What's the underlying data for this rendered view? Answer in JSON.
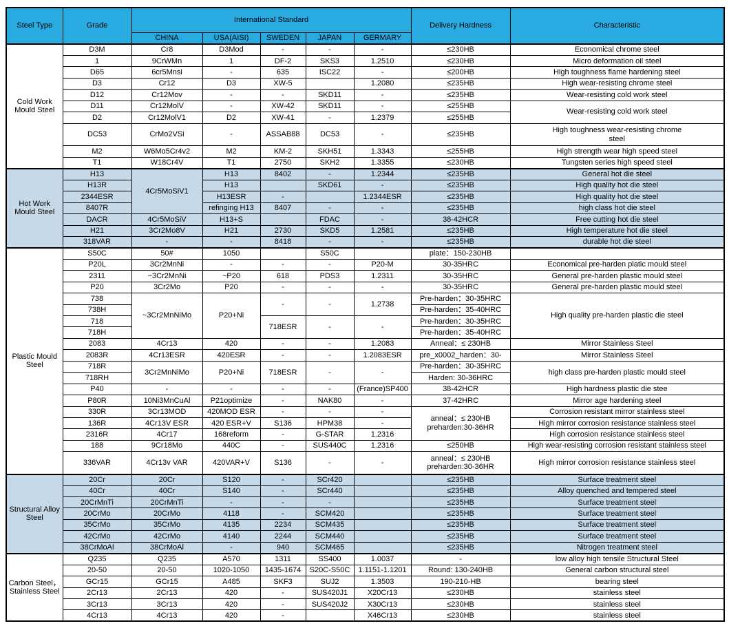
{
  "table": {
    "colors": {
      "header_bg": "#29ABE2",
      "shaded_section_bg": "#C6D9E8",
      "grid_border": "#000000",
      "text": "#000000"
    },
    "header": {
      "steel_type": "Steel Type",
      "grade": "Grade",
      "international_standard": "International Standard",
      "countries": [
        "CHINA",
        "USA(AISI)",
        "SWEDEN",
        "JAPAN",
        "GERMARY"
      ],
      "delivery_hardness": "Delivery Hardness",
      "characteristic": "Characteristic"
    },
    "sections": [
      {
        "steel_type": "Cold Work Mould Steel",
        "shaded": false,
        "rows": [
          {
            "cells": [
              "D3M",
              "Cr8",
              "D3Mod",
              "-",
              "-",
              "-",
              "≤230HB",
              "Economical chrome steel"
            ]
          },
          {
            "cells": [
              "1",
              "9CrWMn",
              "1",
              "DF-2",
              "SKS3",
              "1.2510",
              "≤230HB",
              "Micro deformation oil steel"
            ]
          },
          {
            "cells": [
              "D65",
              "6cr5Mnsi",
              "-",
              "635",
              "ISC22",
              "-",
              "≤200HB",
              "High toughness flame hardening steel"
            ]
          },
          {
            "cells": [
              "D3",
              "Cr12",
              "D3",
              "XW-5",
              "",
              "1.2080",
              "≤235HB",
              "High wear-resisting chrome steel"
            ]
          },
          {
            "cells": [
              "D12",
              "Cr12Mov",
              "-",
              "-",
              "SKD11",
              "-",
              "≤235HB",
              "Wear-resisting cold work steel"
            ]
          },
          {
            "cells": [
              "D11",
              "Cr12MolV",
              "-",
              "XW-42",
              "SKD11",
              "-",
              "≤255HB",
              {
                "t": "Wear-resisting cold work steel",
                "rs": 2
              }
            ]
          },
          {
            "cells": [
              "D2",
              "Cr12MolV1",
              "D2",
              "XW-41",
              "-",
              "1.2379",
              "≤255HB"
            ]
          },
          {
            "tall": true,
            "cells": [
              "DC53",
              "CrMo2VSi",
              "-",
              "ASSAB88",
              "DC53",
              "-",
              "≤235HB",
              "High toughness wear-resisting chrome\nsteel"
            ]
          },
          {
            "cells": [
              "M2",
              "W6Mo5Cr4v2",
              "M2",
              "KM-2",
              "SKH51",
              "1.3343",
              "≤255HB",
              "High strength wear high speed steel"
            ]
          },
          {
            "cells": [
              "T1",
              "W18Cr4V",
              "T1",
              "2750",
              "SKH2",
              "1.3355",
              "≤230HB",
              "Tungsten series high speed steel"
            ]
          }
        ]
      },
      {
        "steel_type": "Hot Work Mould Steel",
        "shaded": true,
        "rows": [
          {
            "cells": [
              "H13",
              {
                "t": "4Cr5MoSiV1",
                "rs": 4
              },
              "H13",
              "8402",
              "-",
              "1.2344",
              "≤235HB",
              "General hot die steel"
            ]
          },
          {
            "cells": [
              "H13R",
              "H13",
              "",
              "SKD61",
              "-",
              "≤235HB",
              "High quality hot die steel"
            ]
          },
          {
            "cells": [
              "2344ESR",
              "H13ESR",
              "-",
              "",
              "1.2344ESR",
              "≤235HB",
              "High quality hot die steel"
            ]
          },
          {
            "cells": [
              "8407R",
              "refinging H13",
              "8407",
              "-",
              "-",
              "≤235HB",
              "high class hot die steel"
            ]
          },
          {
            "cells": [
              "DACR",
              "4Cr5MoSiV",
              "H13+S",
              "",
              "FDAC",
              "-",
              "38-42HCR",
              "Free cutting hot die steel"
            ]
          },
          {
            "cells": [
              "H21",
              "3Cr2Mo8V",
              "H21",
              "2730",
              "SKD5",
              "1.2581",
              "≤235HB",
              "High temperature hot die steel"
            ]
          },
          {
            "cells": [
              "318VAR",
              "-",
              "-",
              "8418",
              "-",
              "-",
              "≤235HB",
              "durable hot die steel"
            ]
          }
        ]
      },
      {
        "steel_type": "Plastic Mould Steel",
        "shaded": false,
        "rows": [
          {
            "cells": [
              "S50C",
              "50#",
              "1050",
              "",
              "S50C",
              "",
              "plate：150-230HB",
              ""
            ]
          },
          {
            "cells": [
              "P20L",
              "3Cr2MnNi",
              "-",
              "-",
              "-",
              "P20-M",
              "30-35HRC",
              "Economical pre-harden platic mould steel"
            ]
          },
          {
            "cells": [
              "2311",
              "~3Cr2MnNi",
              "~P20",
              "618",
              "PDS3",
              "1.2311",
              "30-35HRC",
              "General pre-harden plastic mould steel"
            ]
          },
          {
            "cells": [
              "P20",
              "3Cr2Mo",
              "P20",
              "-",
              "-",
              "-",
              "30-35HRC",
              "General pre-harden plastic mould steel"
            ]
          },
          {
            "cells": [
              "738",
              {
                "t": "~3Cr2MnNiMo",
                "rs": 4
              },
              {
                "t": "P20+Ni",
                "rs": 4
              },
              {
                "t": "-",
                "rs": 2
              },
              {
                "t": "-",
                "rs": 2
              },
              {
                "t": "1.2738",
                "rs": 2
              },
              "Pre-harden：30-35HRC",
              {
                "t": "High quality pre-harden plastic die steel",
                "rs": 4
              }
            ]
          },
          {
            "cells": [
              "738H",
              "Pre-harden：35-40HRC"
            ]
          },
          {
            "cells": [
              "718",
              {
                "t": "718ESR",
                "rs": 2
              },
              {
                "t": "-",
                "rs": 2
              },
              {
                "t": "-",
                "rs": 2
              },
              "Pre-harden：30-35HRC"
            ]
          },
          {
            "cells": [
              "718H",
              "Pre-harden：35-40HRC"
            ]
          },
          {
            "cells": [
              "2083",
              "4Cr13",
              "420",
              "-",
              "-",
              "1.2083",
              "Anneal：≤ 230HB",
              "Mirror Stainless Steel"
            ]
          },
          {
            "cells": [
              "2083R",
              "4Cr13ESR",
              "420ESR",
              "-",
              "-",
              "1.2083ESR",
              "pre_x0002_harden：30-",
              "Mirror Stainless Steel"
            ]
          },
          {
            "cells": [
              "718R",
              {
                "t": "3Cr2MnNiMo",
                "rs": 2
              },
              {
                "t": "P20+Ni",
                "rs": 2
              },
              {
                "t": "718ESR",
                "rs": 2
              },
              {
                "t": "-",
                "rs": 2
              },
              {
                "t": "-",
                "rs": 2
              },
              "Pre-harden：30-35HRC",
              {
                "t": "high class pre-harden plastic mould steel",
                "rs": 2
              }
            ]
          },
          {
            "cells": [
              "718RH",
              "Harden: 30-36HRC"
            ]
          },
          {
            "cells": [
              "P40",
              "-",
              "-",
              "-",
              "-",
              "(France)SP400",
              "38-42HCR",
              "High hardness plastic die stee"
            ]
          },
          {
            "cells": [
              "P80R",
              "10Ni3MnCuAl",
              "P21optimize",
              "-",
              "NAK80",
              "-",
              "37-42HRC",
              "Mirror age hardening steel"
            ]
          },
          {
            "cells": [
              "330R",
              "3Cr13MOD",
              "420MOD ESR",
              "-",
              "-",
              "-",
              {
                "t": "anneal：≤ 230HB\npreharden:30-36HR",
                "rs": 3
              },
              "Corrosion resistant mirror stainless steel"
            ]
          },
          {
            "cells": [
              "136R",
              "4Cr13V ESR",
              "420 ESR+V",
              "S136",
              "HPM38",
              "-",
              "High mirror corrosion resistance stainless steel"
            ]
          },
          {
            "cells": [
              "2316R",
              "4Cr17",
              "168reform",
              "-",
              "G-STAR",
              "1.2316",
              "High corrosion resistance stainless steel"
            ]
          },
          {
            "cells": [
              "188",
              "9Cr18Mo",
              "440C",
              "-",
              "SUS440C",
              "1.2316",
              "≤250HB",
              "High wear-resisting corrosion resistant stainless steel"
            ]
          },
          {
            "tall": true,
            "cells": [
              "336VAR",
              "4Cr13v VAR",
              "420VAR+V",
              "S136",
              "-",
              "-",
              "anneal：≤ 230HB\npreharden:30-36HR",
              "High mirror corrosion resistance stainless steel"
            ]
          }
        ]
      },
      {
        "steel_type": "Structural Alloy Steel",
        "shaded": true,
        "rows": [
          {
            "cells": [
              "20Cr",
              "20Cr",
              "S120",
              "-",
              "SCr420",
              "",
              "≤235HB",
              "Surface treatment steel"
            ]
          },
          {
            "cells": [
              "40Cr",
              "40Cr",
              "S140",
              "-",
              "SCr440",
              "",
              "≤235HB",
              "Alloy quenched and tempered steel"
            ]
          },
          {
            "cells": [
              "20CrMnTi",
              "20CrMnTi",
              "-",
              "-",
              "-",
              "",
              "≤235HB",
              "Surface treatment steel"
            ]
          },
          {
            "cells": [
              "20CrMo",
              "20CrMo",
              "4118",
              "-",
              "SCM420",
              "",
              "≤235HB",
              "Surface treatment steel"
            ]
          },
          {
            "cells": [
              "35CrMo",
              "35CrMo",
              "4135",
              "2234",
              "SCM435",
              "",
              "≤235HB",
              "Surface treatment steel"
            ]
          },
          {
            "cells": [
              "42CrMo",
              "42CrMo",
              "4140",
              "2244",
              "SCM440",
              "",
              "≤235HB",
              "Surface treatment steel"
            ]
          },
          {
            "cells": [
              "38CrMoAl",
              "38CrMoAl",
              "-",
              "940",
              "SCM465",
              "",
              "≤235HB",
              "Nitrogen treatment steel"
            ]
          }
        ]
      },
      {
        "steel_type": "Carbon Steel，Stainless Steel",
        "shaded": false,
        "rows": [
          {
            "cells": [
              "Q235",
              "Q235",
              "A570",
              "1311",
              "SS400",
              "1.0037",
              "-",
              "low alloy high tensile Structural Steel"
            ]
          },
          {
            "cells": [
              "20-50",
              "20-50",
              "1020-1050",
              "1435-1674",
              "S20C-S50C",
              "1.1151-1.1201",
              "Round: 130-240HB",
              "General carbon structural steel"
            ]
          },
          {
            "cells": [
              "GCr15",
              "GCr15",
              "A485",
              "SKF3",
              "SUJ2",
              "1.3503",
              "190-210-HB",
              "bearing steel"
            ]
          },
          {
            "cells": [
              "2Cr13",
              "2Cr13",
              "420",
              "-",
              "SUS420J1",
              "X20Cr13",
              "≤230HB",
              "stainless steel"
            ]
          },
          {
            "cells": [
              "3Cr13",
              "3Cr13",
              "420",
              "-",
              "SUS420J2",
              "X30Cr13",
              "≤230HB",
              "stainless steel"
            ]
          },
          {
            "cells": [
              "4Cr13",
              "4Cr13",
              "420",
              "-",
              "",
              "X46Cr13",
              "≤230HB",
              "stainless steel"
            ]
          }
        ]
      }
    ]
  }
}
